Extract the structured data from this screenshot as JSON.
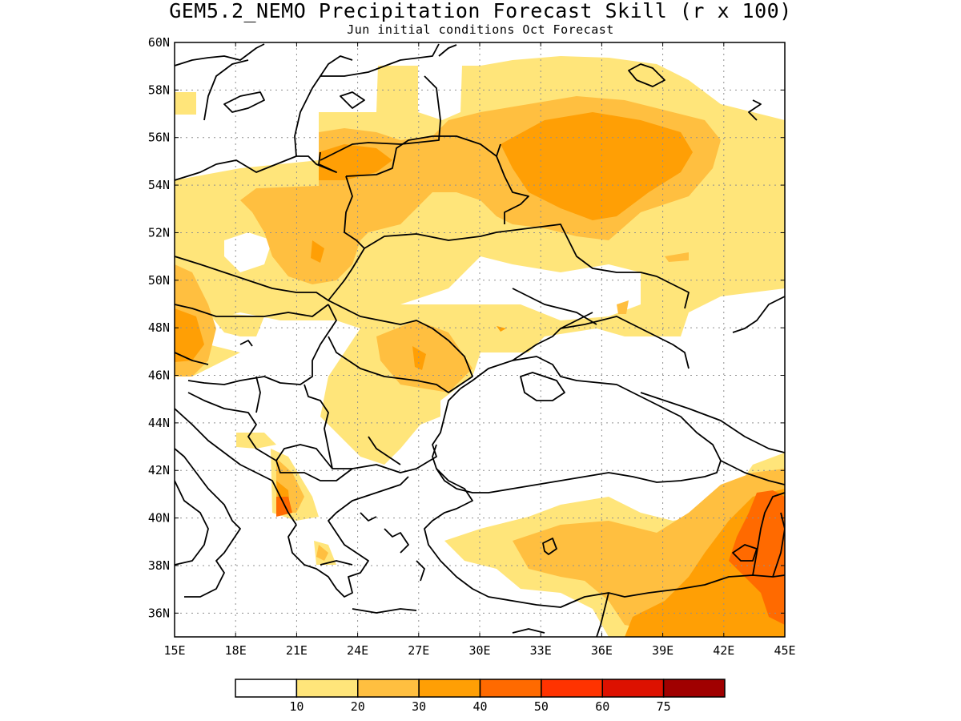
{
  "title": "GEM5.2_NEMO Precipitation Forecast Skill (r x 100)",
  "subtitle": "Jun initial conditions  Oct Forecast",
  "map": {
    "lon_range": [
      15,
      45
    ],
    "lat_range": [
      35,
      60
    ],
    "lat_ticks": [
      "60N",
      "58N",
      "56N",
      "54N",
      "52N",
      "50N",
      "48N",
      "46N",
      "44N",
      "42N",
      "40N",
      "38N",
      "36N"
    ],
    "lon_ticks": [
      "15E",
      "18E",
      "21E",
      "24E",
      "27E",
      "30E",
      "33E",
      "36E",
      "39E",
      "42E",
      "45E"
    ],
    "gridlines": "dotted"
  },
  "colorbar": {
    "colors": [
      "#ffffff",
      "#ffe57a",
      "#ffbf40",
      "#ff9f05",
      "#ff6a00",
      "#ff3300",
      "#dd1100",
      "#a00000"
    ],
    "labels": [
      "10",
      "20",
      "30",
      "40",
      "50",
      "60",
      "75"
    ]
  }
}
